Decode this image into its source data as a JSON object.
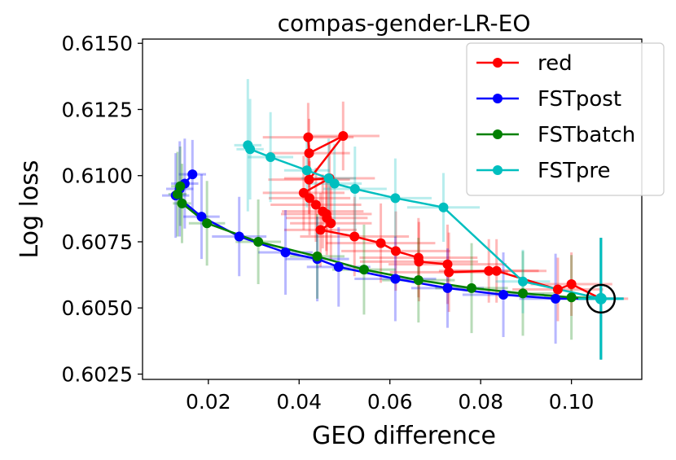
{
  "chart_data": {
    "type": "line",
    "title": "compas-gender-LR-EO",
    "xlabel": "GEO difference",
    "ylabel": "Log loss",
    "xlim": [
      0.0055,
      0.1155
    ],
    "ylim": [
      0.6023,
      0.61516
    ],
    "xticks": [
      0.02,
      0.04,
      0.06,
      0.08,
      0.1
    ],
    "xtick_labels": [
      "0.02",
      "0.04",
      "0.06",
      "0.08",
      "0.10"
    ],
    "yticks": [
      0.6025,
      0.605,
      0.6075,
      0.61,
      0.6125,
      0.615
    ],
    "ytick_labels": [
      "0.6025",
      "0.6050",
      "0.6075",
      "0.6100",
      "0.6125",
      "0.6150"
    ],
    "grid": false,
    "legend_position": "top-right",
    "highlight": {
      "label": "selected point",
      "x": 0.1065,
      "y": 0.60535
    },
    "series": [
      {
        "name": "red",
        "color": "#ff0000",
        "x": [
          0.042,
          0.0422,
          0.0497,
          0.0422,
          0.0467,
          0.041,
          0.0423,
          0.0437,
          0.0452,
          0.046,
          0.0461,
          0.047,
          0.0447,
          0.0522,
          0.058,
          0.0613,
          0.0663,
          0.0664,
          0.0727,
          0.073,
          0.0818,
          0.0835,
          0.097,
          0.1,
          0.1065
        ],
        "y": [
          0.61145,
          0.61085,
          0.6115,
          0.60985,
          0.6099,
          0.60935,
          0.60915,
          0.6089,
          0.60865,
          0.60855,
          0.6084,
          0.6082,
          0.60795,
          0.6077,
          0.60745,
          0.60715,
          0.6069,
          0.60675,
          0.60665,
          0.60635,
          0.6064,
          0.6064,
          0.6057,
          0.6059,
          0.60535
        ],
        "xerr": [
          0.01,
          0.009,
          0.008,
          0.009,
          0.01,
          0.009,
          0.009,
          0.01,
          0.009,
          0.01,
          0.009,
          0.009,
          0.008,
          0.012,
          0.012,
          0.012,
          0.013,
          0.013,
          0.013,
          0.013,
          0.011,
          0.011,
          0.01,
          0.009,
          0.006
        ],
        "yerr": [
          0.0013,
          0.0013,
          0.0013,
          0.0013,
          0.0013,
          0.0014,
          0.0014,
          0.0014,
          0.0014,
          0.0014,
          0.0014,
          0.0014,
          0.0014,
          0.0015,
          0.0015,
          0.0015,
          0.0015,
          0.0015,
          0.0015,
          0.0015,
          0.0012,
          0.0012,
          0.0012,
          0.0012,
          0.0023
        ]
      },
      {
        "name": "FSTpost",
        "color": "#0000ff",
        "x": [
          0.0165,
          0.0148,
          0.0137,
          0.0128,
          0.0185,
          0.0268,
          0.037,
          0.044,
          0.0487,
          0.0612,
          0.0727,
          0.085,
          0.0965,
          0.1065
        ],
        "y": [
          0.61005,
          0.6097,
          0.6095,
          0.60925,
          0.60845,
          0.6077,
          0.6071,
          0.60685,
          0.60655,
          0.6061,
          0.60575,
          0.6055,
          0.60535,
          0.60535
        ],
        "xerr": [
          0.003,
          0.003,
          0.003,
          0.003,
          0.004,
          0.006,
          0.006,
          0.007,
          0.007,
          0.009,
          0.008,
          0.009,
          0.008,
          0.005
        ],
        "yerr": [
          0.0013,
          0.0017,
          0.0018,
          0.0016,
          0.0016,
          0.0015,
          0.0016,
          0.0016,
          0.0015,
          0.0016,
          0.0015,
          0.0016,
          0.0017,
          0.0023
        ]
      },
      {
        "name": "FSTbatch",
        "color": "#008000",
        "x": [
          0.0132,
          0.0138,
          0.0142,
          0.0197,
          0.031,
          0.044,
          0.0543,
          0.0663,
          0.078,
          0.0893,
          0.1,
          0.1065
        ],
        "y": [
          0.6093,
          0.6096,
          0.60895,
          0.6082,
          0.6075,
          0.60695,
          0.60645,
          0.60605,
          0.60575,
          0.60555,
          0.6054,
          0.60535
        ],
        "xerr": [
          0.002,
          0.002,
          0.002,
          0.004,
          0.005,
          0.006,
          0.007,
          0.008,
          0.008,
          0.007,
          0.006,
          0.004
        ],
        "yerr": [
          0.0016,
          0.0015,
          0.0015,
          0.0016,
          0.0016,
          0.0016,
          0.0017,
          0.0016,
          0.0017,
          0.0016,
          0.0016,
          0.0023
        ]
      },
      {
        "name": "FSTpre",
        "color": "#00bfbf",
        "x": [
          0.0287,
          0.0292,
          0.0337,
          0.0417,
          0.0465,
          0.0478,
          0.0523,
          0.0612,
          0.0718,
          0.0893,
          0.1065
        ],
        "y": [
          0.61115,
          0.611,
          0.6107,
          0.6102,
          0.6099,
          0.6097,
          0.6095,
          0.60915,
          0.6088,
          0.606,
          0.60535
        ],
        "xerr": [
          0.003,
          0.003,
          0.005,
          0.005,
          0.006,
          0.006,
          0.007,
          0.008,
          0.008,
          0.006,
          0.005
        ],
        "yerr": [
          0.0025,
          0.0019,
          0.0017,
          0.0014,
          0.0015,
          0.0015,
          0.0016,
          0.0015,
          0.0013,
          0.0012,
          0.0023
        ]
      }
    ]
  }
}
